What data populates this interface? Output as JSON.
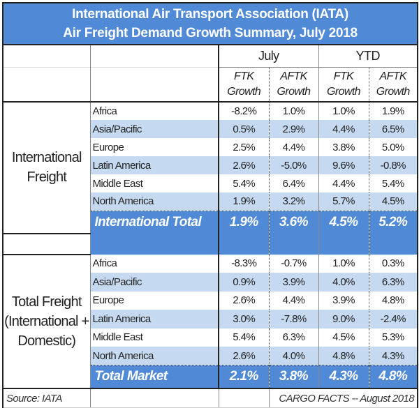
{
  "title": {
    "line1": "International Air Transport Association (IATA)",
    "line2": "Air Freight Demand Growth Summary, July 2018"
  },
  "periods": [
    "July",
    "YTD"
  ],
  "metrics": [
    {
      "line1": "FTK",
      "line2": "Growth"
    },
    {
      "line1": "AFTK",
      "line2": "Growth"
    },
    {
      "line1": "FTK",
      "line2": "Growth"
    },
    {
      "line1": "AFTK",
      "line2": "Growth"
    }
  ],
  "colors": {
    "header_blue": "#5089d6",
    "band_light": "#c5d9f1"
  },
  "groups": [
    {
      "label": "International Freight",
      "rows": [
        {
          "region": "Africa",
          "values": [
            "-8.2%",
            "1.0%",
            "1.0%",
            "1.9%"
          ]
        },
        {
          "region": "Asia/Pacific",
          "values": [
            "0.5%",
            "2.9%",
            "4.4%",
            "6.5%"
          ]
        },
        {
          "region": "Europe",
          "values": [
            "2.5%",
            "4.4%",
            "3.8%",
            "5.0%"
          ]
        },
        {
          "region": "Latin America",
          "values": [
            "2.6%",
            "-5.0%",
            "9.6%",
            "-0.8%"
          ]
        },
        {
          "region": "Middle East",
          "values": [
            "5.4%",
            "6.4%",
            "4.4%",
            "5.4%"
          ]
        },
        {
          "region": "North America",
          "values": [
            "1.9%",
            "3.2%",
            "5.7%",
            "4.5%"
          ]
        }
      ],
      "total": {
        "label": "International Total",
        "values": [
          "1.9%",
          "3.6%",
          "4.5%",
          "5.2%"
        ]
      }
    },
    {
      "label": "Total Freight (International + Domestic)",
      "rows": [
        {
          "region": "Africa",
          "values": [
            "-8.3%",
            "-0.7%",
            "1.0%",
            "0.3%"
          ]
        },
        {
          "region": "Asia/Pacific",
          "values": [
            "0.9%",
            "3.9%",
            "4.0%",
            "6.3%"
          ]
        },
        {
          "region": "Europe",
          "values": [
            "2.6%",
            "4.4%",
            "3.9%",
            "4.8%"
          ]
        },
        {
          "region": "Latin America",
          "values": [
            "3.0%",
            "-7.8%",
            "9.0%",
            "-2.4%"
          ]
        },
        {
          "region": "Middle East",
          "values": [
            "5.4%",
            "6.3%",
            "4.5%",
            "5.3%"
          ]
        },
        {
          "region": "North America",
          "values": [
            "2.6%",
            "4.0%",
            "4.8%",
            "4.3%"
          ]
        }
      ],
      "total": {
        "label": "Total Market",
        "values": [
          "2.1%",
          "3.8%",
          "4.3%",
          "4.8%"
        ]
      }
    }
  ],
  "footer": {
    "source": "Source: IATA",
    "credit": "CARGO FACTS -- August 2018"
  }
}
